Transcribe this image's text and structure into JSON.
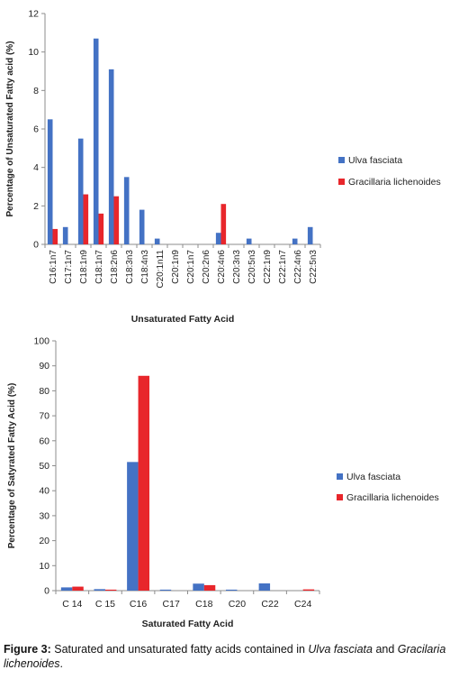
{
  "chart_data": [
    {
      "type": "bar",
      "xlabel": "Unsaturated Fatty Acid",
      "ylabel": "Percentage of Unsaturated Fatty acid (%)",
      "ylim": [
        0,
        12
      ],
      "yticks": [
        0,
        2,
        4,
        6,
        8,
        10,
        12
      ],
      "grid": false,
      "legend_position": "right",
      "categories": [
        "C16:1n7",
        "C17:1n7",
        "C18:1n9",
        "C18:1n7",
        "C18:2n6",
        "C18:3n3",
        "C18:4n3",
        "C20:1n11",
        "C20:1n9",
        "C20:1n7",
        "C20:2n6",
        "C20:4n6",
        "C20:3n3",
        "C20:5n3",
        "C22:1n9",
        "C22:1n7",
        "C22:4n6",
        "C22:5n3"
      ],
      "series": [
        {
          "name": "Ulva fasciata",
          "color": "#4472c4",
          "values": [
            6.5,
            0.9,
            5.5,
            10.7,
            9.1,
            3.5,
            1.8,
            0.3,
            0,
            0,
            0,
            0.6,
            0,
            0.3,
            0,
            0,
            0.3,
            0.9
          ]
        },
        {
          "name": "Gracillaria lichenoides",
          "color": "#e8262b",
          "values": [
            0.8,
            0,
            2.6,
            1.6,
            2.5,
            0,
            0,
            0,
            0,
            0,
            0,
            2.1,
            0,
            0,
            0,
            0,
            0,
            0
          ]
        }
      ]
    },
    {
      "type": "bar",
      "xlabel": "Saturated Fatty Acid",
      "ylabel": "Percentage of Satyrated Fatty Acid (%)",
      "ylim": [
        0,
        100
      ],
      "yticks": [
        0,
        10,
        20,
        30,
        40,
        50,
        60,
        70,
        80,
        90,
        100
      ],
      "grid": false,
      "legend_position": "right",
      "categories": [
        "C 14",
        "C 15",
        "C16",
        "C17",
        "C18",
        "C20",
        "C22",
        "C24"
      ],
      "series": [
        {
          "name": "Ulva fasciata",
          "color": "#4472c4",
          "values": [
            1.3,
            0.6,
            51.5,
            0.4,
            2.8,
            0.4,
            2.9,
            0
          ]
        },
        {
          "name": "Gracillaria lichenoides",
          "color": "#e8262b",
          "values": [
            1.6,
            0.4,
            86,
            0,
            2.2,
            0,
            0,
            0.5
          ]
        }
      ]
    }
  ],
  "caption": {
    "label": "Figure 3:",
    "text_before": " Saturated and unsaturated fatty acids contained in ",
    "species1": "Ulva fasciata",
    "text_between": " and ",
    "species2": "Gracilaria lichenoides",
    "text_after": "."
  }
}
